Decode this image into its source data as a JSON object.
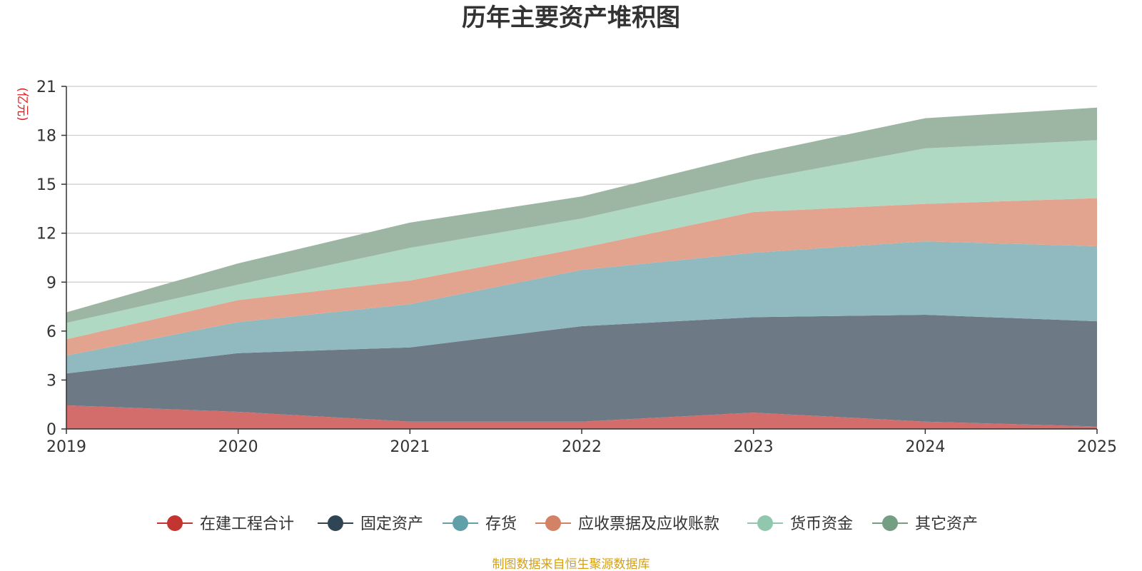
{
  "colors": {
    "grid": "#cccccc",
    "axis": "#333333",
    "unit": "#e02020",
    "source": "#d4a017"
  },
  "chart_data": {
    "type": "area",
    "stacked": true,
    "title": "历年主要资产堆积图",
    "unit": "(亿元)",
    "xlabel": "",
    "ylabel": "(亿元)",
    "x": [
      "2019",
      "2020",
      "2021",
      "2022",
      "2023",
      "2024",
      "2025"
    ],
    "ylim": [
      0,
      21
    ],
    "yticks": [
      0,
      3,
      6,
      9,
      12,
      15,
      18,
      21
    ],
    "grid": true,
    "legend_position": "bottom",
    "source": "制图数据来自恒生聚源数据库",
    "series": [
      {
        "name": "在建工程合计",
        "legend_color": "#c23531",
        "fill": "#d36d6b",
        "values": [
          1.45,
          1.05,
          0.45,
          0.45,
          1.0,
          0.45,
          0.15
        ]
      },
      {
        "name": "固定资产",
        "legend_color": "#2f4554",
        "fill": "#6d7a85",
        "values": [
          1.95,
          3.6,
          4.55,
          5.85,
          5.85,
          6.55,
          6.45
        ]
      },
      {
        "name": "存货",
        "legend_color": "#61a0a8",
        "fill": "#90bac0",
        "values": [
          1.1,
          1.9,
          2.65,
          3.45,
          3.95,
          4.5,
          4.6
        ]
      },
      {
        "name": "应收票据及应收账款",
        "legend_color": "#d48265",
        "fill": "#e2a38f",
        "values": [
          1.0,
          1.35,
          1.45,
          1.35,
          2.5,
          2.3,
          2.95
        ]
      },
      {
        "name": "货币资金",
        "legend_color": "#91c7ae",
        "fill": "#b0d9c3",
        "values": [
          1.0,
          0.95,
          2.0,
          1.8,
          1.95,
          3.4,
          3.55
        ]
      },
      {
        "name": "其它资产",
        "legend_color": "#749f83",
        "fill": "#9db6a3",
        "values": [
          0.65,
          1.3,
          1.55,
          1.35,
          1.6,
          1.85,
          2.0
        ]
      }
    ]
  }
}
